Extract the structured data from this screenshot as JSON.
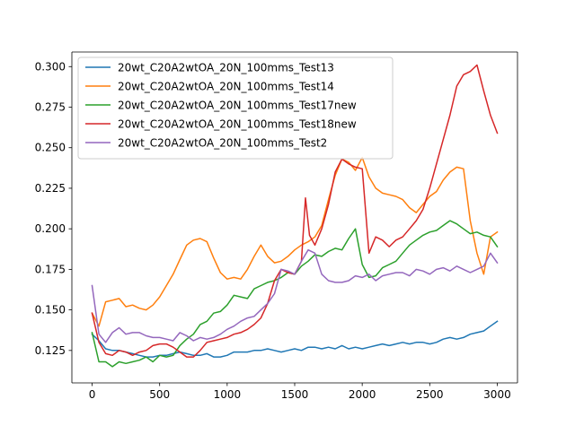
{
  "chart_data": {
    "type": "line",
    "title": "",
    "xlabel": "",
    "ylabel": "",
    "xlim": [
      -150,
      3150
    ],
    "ylim": [
      0.105,
      0.309
    ],
    "xticks": [
      0,
      500,
      1000,
      1500,
      2000,
      2500,
      3000
    ],
    "xtick_labels": [
      "0",
      "500",
      "1000",
      "1500",
      "2000",
      "2500",
      "3000"
    ],
    "yticks": [
      0.125,
      0.15,
      0.175,
      0.2,
      0.225,
      0.25,
      0.275,
      0.3
    ],
    "ytick_labels": [
      "0.125",
      "0.150",
      "0.175",
      "0.200",
      "0.225",
      "0.250",
      "0.275",
      "0.300"
    ],
    "grid": false,
    "legend_position": "upper-left",
    "series": [
      {
        "name": "20wt_C20A2wtOA_20N_100mms_Test13",
        "color": "#1f77b4",
        "x": [
          0,
          50,
          100,
          150,
          200,
          250,
          300,
          350,
          400,
          450,
          500,
          550,
          600,
          650,
          700,
          750,
          800,
          850,
          900,
          950,
          1000,
          1050,
          1100,
          1150,
          1200,
          1250,
          1300,
          1350,
          1400,
          1450,
          1500,
          1550,
          1600,
          1650,
          1700,
          1750,
          1800,
          1850,
          1900,
          1950,
          2000,
          2050,
          2100,
          2150,
          2200,
          2250,
          2300,
          2350,
          2400,
          2450,
          2500,
          2550,
          2600,
          2650,
          2700,
          2750,
          2800,
          2850,
          2900,
          2950,
          3000
        ],
        "y": [
          0.135,
          0.131,
          0.126,
          0.125,
          0.125,
          0.124,
          0.123,
          0.122,
          0.121,
          0.121,
          0.122,
          0.122,
          0.123,
          0.124,
          0.123,
          0.122,
          0.122,
          0.123,
          0.121,
          0.121,
          0.122,
          0.124,
          0.124,
          0.124,
          0.125,
          0.125,
          0.126,
          0.125,
          0.124,
          0.125,
          0.126,
          0.125,
          0.127,
          0.127,
          0.126,
          0.127,
          0.126,
          0.128,
          0.126,
          0.127,
          0.126,
          0.127,
          0.128,
          0.129,
          0.128,
          0.129,
          0.13,
          0.129,
          0.13,
          0.13,
          0.129,
          0.13,
          0.132,
          0.133,
          0.132,
          0.133,
          0.135,
          0.136,
          0.137,
          0.14,
          0.143
        ]
      },
      {
        "name": "20wt_C20A2wtOA_20N_100mms_Test14",
        "color": "#ff7f0e",
        "x": [
          0,
          50,
          100,
          150,
          200,
          250,
          300,
          350,
          400,
          450,
          500,
          550,
          600,
          650,
          700,
          750,
          800,
          850,
          900,
          950,
          1000,
          1050,
          1100,
          1150,
          1200,
          1250,
          1300,
          1350,
          1400,
          1450,
          1500,
          1550,
          1600,
          1650,
          1700,
          1750,
          1800,
          1850,
          1900,
          1950,
          2000,
          2050,
          2100,
          2150,
          2200,
          2250,
          2300,
          2350,
          2400,
          2450,
          2500,
          2550,
          2600,
          2650,
          2700,
          2750,
          2800,
          2850,
          2900,
          2950,
          3000
        ],
        "y": [
          0.148,
          0.14,
          0.155,
          0.156,
          0.157,
          0.152,
          0.153,
          0.151,
          0.15,
          0.153,
          0.158,
          0.165,
          0.172,
          0.181,
          0.19,
          0.193,
          0.194,
          0.192,
          0.182,
          0.173,
          0.169,
          0.17,
          0.169,
          0.175,
          0.183,
          0.19,
          0.183,
          0.179,
          0.18,
          0.183,
          0.187,
          0.19,
          0.192,
          0.195,
          0.202,
          0.218,
          0.233,
          0.243,
          0.241,
          0.236,
          0.244,
          0.232,
          0.225,
          0.222,
          0.221,
          0.22,
          0.218,
          0.213,
          0.21,
          0.215,
          0.22,
          0.223,
          0.23,
          0.235,
          0.238,
          0.237,
          0.205,
          0.185,
          0.172,
          0.195,
          0.198
        ]
      },
      {
        "name": "20wt_C20A2wtOA_20N_100mms_Test17new",
        "color": "#2ca02c",
        "x": [
          0,
          50,
          100,
          150,
          200,
          250,
          300,
          350,
          400,
          450,
          500,
          550,
          600,
          650,
          700,
          750,
          800,
          850,
          900,
          950,
          1000,
          1050,
          1100,
          1150,
          1200,
          1250,
          1300,
          1350,
          1400,
          1450,
          1500,
          1550,
          1600,
          1650,
          1700,
          1750,
          1800,
          1850,
          1900,
          1950,
          2000,
          2050,
          2100,
          2150,
          2200,
          2250,
          2300,
          2350,
          2400,
          2450,
          2500,
          2550,
          2600,
          2650,
          2700,
          2750,
          2800,
          2850,
          2900,
          2950,
          3000
        ],
        "y": [
          0.136,
          0.118,
          0.118,
          0.115,
          0.118,
          0.117,
          0.118,
          0.119,
          0.121,
          0.118,
          0.122,
          0.121,
          0.122,
          0.128,
          0.132,
          0.135,
          0.141,
          0.143,
          0.148,
          0.149,
          0.153,
          0.159,
          0.158,
          0.157,
          0.163,
          0.165,
          0.167,
          0.168,
          0.17,
          0.173,
          0.172,
          0.177,
          0.18,
          0.184,
          0.183,
          0.186,
          0.188,
          0.187,
          0.194,
          0.2,
          0.178,
          0.17,
          0.171,
          0.176,
          0.178,
          0.18,
          0.185,
          0.19,
          0.193,
          0.196,
          0.198,
          0.199,
          0.202,
          0.205,
          0.203,
          0.2,
          0.197,
          0.198,
          0.196,
          0.195,
          0.189
        ]
      },
      {
        "name": "20wt_C20A2wtOA_20N_100mms_Test18new",
        "color": "#d62728",
        "x": [
          0,
          50,
          100,
          150,
          200,
          250,
          300,
          350,
          400,
          450,
          500,
          550,
          600,
          650,
          700,
          750,
          800,
          850,
          900,
          950,
          1000,
          1050,
          1100,
          1150,
          1200,
          1250,
          1300,
          1350,
          1400,
          1450,
          1500,
          1550,
          1580,
          1610,
          1650,
          1700,
          1750,
          1800,
          1850,
          1900,
          1950,
          2000,
          2050,
          2100,
          2150,
          2200,
          2250,
          2300,
          2350,
          2400,
          2450,
          2500,
          2550,
          2600,
          2650,
          2700,
          2750,
          2800,
          2850,
          2900,
          2950,
          3000
        ],
        "y": [
          0.148,
          0.13,
          0.123,
          0.122,
          0.125,
          0.124,
          0.122,
          0.124,
          0.125,
          0.128,
          0.129,
          0.129,
          0.127,
          0.124,
          0.121,
          0.121,
          0.125,
          0.13,
          0.131,
          0.132,
          0.133,
          0.135,
          0.136,
          0.138,
          0.141,
          0.145,
          0.154,
          0.168,
          0.175,
          0.173,
          0.172,
          0.18,
          0.219,
          0.196,
          0.19,
          0.2,
          0.215,
          0.235,
          0.243,
          0.24,
          0.238,
          0.237,
          0.185,
          0.195,
          0.193,
          0.189,
          0.193,
          0.195,
          0.2,
          0.205,
          0.212,
          0.225,
          0.24,
          0.255,
          0.27,
          0.288,
          0.295,
          0.297,
          0.301,
          0.285,
          0.27,
          0.259
        ]
      },
      {
        "name": "20wt_C20A2wtOA_20N_100mms_Test2",
        "color": "#9467bd",
        "x": [
          0,
          50,
          100,
          150,
          200,
          250,
          300,
          350,
          400,
          450,
          500,
          550,
          600,
          650,
          700,
          750,
          800,
          850,
          900,
          950,
          1000,
          1050,
          1100,
          1150,
          1200,
          1250,
          1300,
          1350,
          1400,
          1450,
          1500,
          1550,
          1600,
          1650,
          1700,
          1750,
          1800,
          1850,
          1900,
          1950,
          2000,
          2050,
          2100,
          2150,
          2200,
          2250,
          2300,
          2350,
          2400,
          2450,
          2500,
          2550,
          2600,
          2650,
          2700,
          2750,
          2800,
          2850,
          2900,
          2950,
          3000
        ],
        "y": [
          0.165,
          0.135,
          0.13,
          0.136,
          0.139,
          0.135,
          0.136,
          0.136,
          0.134,
          0.133,
          0.133,
          0.132,
          0.131,
          0.136,
          0.134,
          0.131,
          0.133,
          0.132,
          0.133,
          0.135,
          0.138,
          0.14,
          0.143,
          0.145,
          0.146,
          0.15,
          0.154,
          0.16,
          0.175,
          0.174,
          0.172,
          0.18,
          0.187,
          0.185,
          0.172,
          0.168,
          0.167,
          0.167,
          0.168,
          0.171,
          0.17,
          0.172,
          0.168,
          0.171,
          0.172,
          0.173,
          0.173,
          0.171,
          0.175,
          0.174,
          0.172,
          0.175,
          0.176,
          0.174,
          0.177,
          0.175,
          0.173,
          0.175,
          0.177,
          0.185,
          0.179
        ]
      }
    ]
  }
}
